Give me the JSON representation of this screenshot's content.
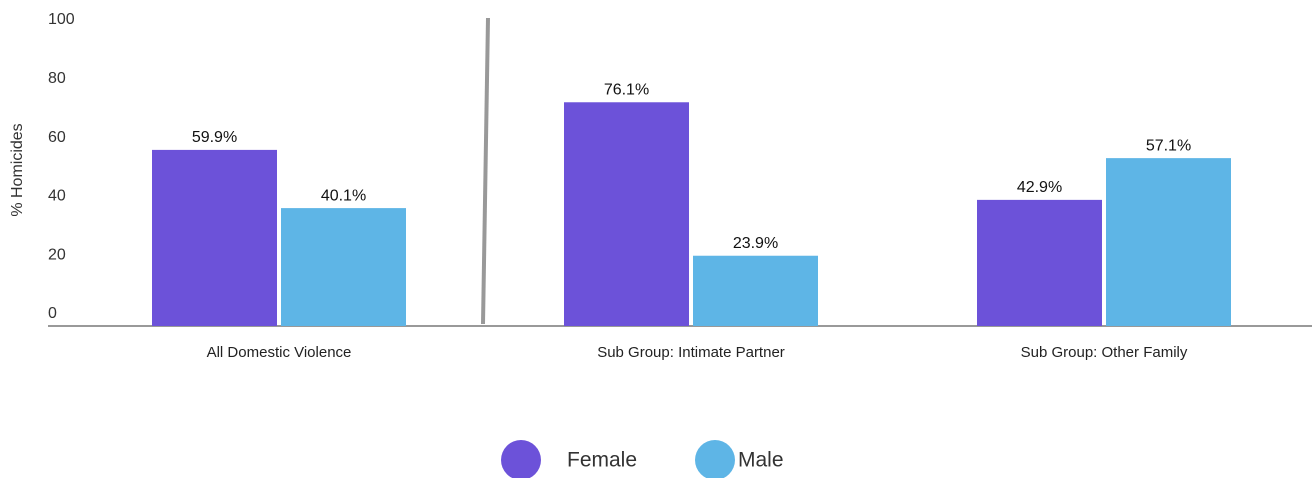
{
  "chart_data": {
    "type": "bar",
    "y_label": "% Homicides",
    "categories": [
      "All Domestic Violence",
      "Sub Group: Intimate Partner",
      "Sub Group: Other Family"
    ],
    "series": [
      {
        "name": "Female",
        "color": "#6c52d9",
        "values": [
          59.9,
          76.1,
          42.9
        ],
        "value_labels": [
          "59.9%",
          "76.1%",
          "42.9%"
        ]
      },
      {
        "name": "Male",
        "color": "#5eb5e6",
        "values": [
          40.1,
          23.9,
          57.1
        ],
        "value_labels": [
          "40.1%",
          "23.9%",
          "57.1%"
        ]
      }
    ],
    "ylim": [
      0,
      100
    ],
    "yticks": [
      0,
      20,
      40,
      60,
      80,
      100
    ],
    "grid": false,
    "legend": "bottom"
  }
}
